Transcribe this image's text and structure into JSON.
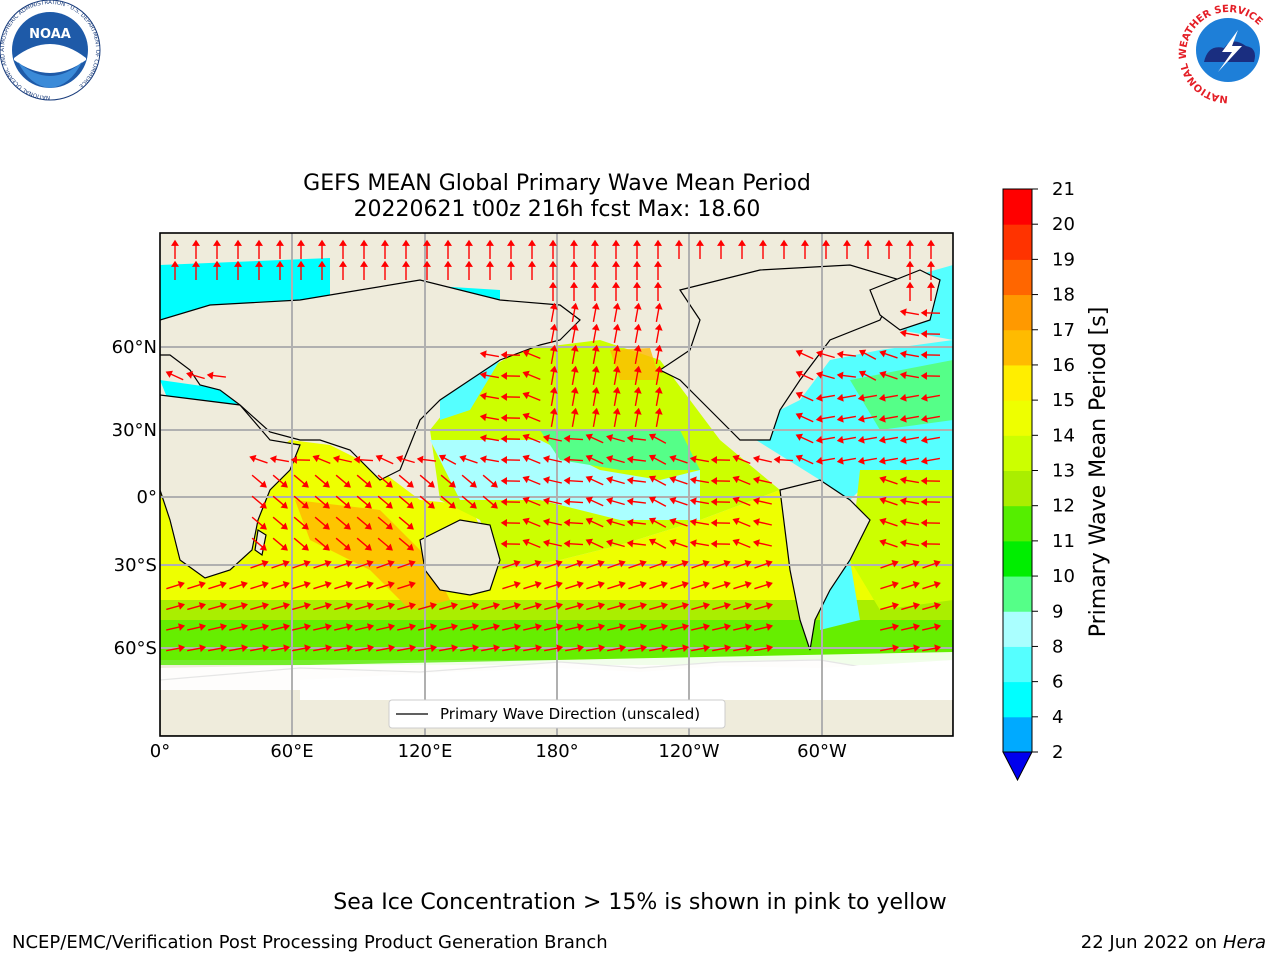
{
  "title": {
    "line1": "GEFS MEAN Global Primary Wave Mean Period",
    "line2": "20220621 t00z 216h fcst   Max: 18.60"
  },
  "legend": {
    "label": "Primary Wave Direction (unscaled)"
  },
  "axes": {
    "x_ticks": [
      "0°",
      "60°E",
      "120°E",
      "180°",
      "120°W",
      "60°W"
    ],
    "y_ticks": [
      "60°N",
      "30°N",
      "0°",
      "30°S",
      "60°S"
    ]
  },
  "colorbar": {
    "label": "Primary Wave Mean Period [s]",
    "levels": [
      "2",
      "4",
      "6",
      "8",
      "9",
      "10",
      "11",
      "12",
      "13",
      "14",
      "15",
      "16",
      "17",
      "18",
      "19",
      "20",
      "21"
    ],
    "colors": [
      "#0055ff",
      "#00aaff",
      "#00ffff",
      "#55ffff",
      "#aaffff",
      "#55ff88",
      "#00ee00",
      "#55ee00",
      "#aaee00",
      "#ccff00",
      "#eeff00",
      "#ffee00",
      "#ffbb00",
      "#ff9900",
      "#ff6600",
      "#ff3300",
      "#ff0000"
    ],
    "under_color": "#0000ee"
  },
  "logos": {
    "noaa": {
      "text": "NOAA",
      "ring_text": "NATIONAL OCEANIC AND ATMOSPHERIC ADMINISTRATION · U.S. DEPARTMENT OF COMMERCE"
    },
    "nws": {
      "ring_text": "NATIONAL WEATHER SERVICE"
    }
  },
  "notes": {
    "ice": "Sea Ice Concentration > 15% is shown in pink to yellow",
    "branch": "NCEP/EMC/Verification Post Processing Product Generation Branch",
    "date": "22 Jun 2022 on",
    "machine": "Hera"
  },
  "map_colors": {
    "land": "#efecdc",
    "grid": "#b0b0b0",
    "arrow": "#ff0000",
    "coast": "#000000"
  }
}
